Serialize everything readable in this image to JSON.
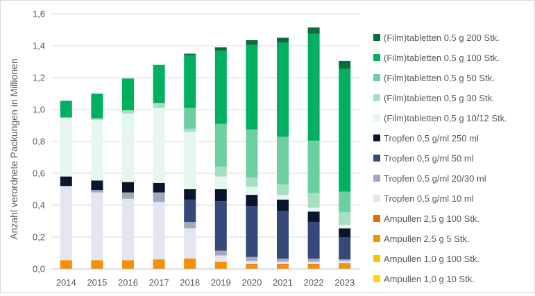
{
  "chart_data": {
    "type": "bar",
    "stacked": true,
    "ylabel": "Anzahl verordnete Packungen in Millionen",
    "xlabel": "",
    "ylim": [
      0,
      1.6
    ],
    "yticks": [
      "0,0",
      "0,2",
      "0,4",
      "0,6",
      "0,8",
      "1,0",
      "1,2",
      "1,4",
      "1,6"
    ],
    "grid": true,
    "legend_position": "right",
    "categories": [
      "2014",
      "2015",
      "2016",
      "2017",
      "2018",
      "2019",
      "2020",
      "2021",
      "2022",
      "2023"
    ],
    "series": [
      {
        "name": "Ampullen 1,0 g 10 Stk.",
        "color": "#ffd700",
        "values": [
          0,
          0,
          0,
          0,
          0,
          0,
          0,
          0,
          0,
          0
        ]
      },
      {
        "name": "Ampullen 1,0 g 100 Stk.",
        "color": "#f5c400",
        "values": [
          0,
          0,
          0,
          0,
          0,
          0,
          0,
          0,
          0,
          0
        ]
      },
      {
        "name": "Ampullen 2,5 g 5 Stk.",
        "color": "#f39200",
        "values": [
          0.055,
          0.055,
          0.055,
          0.06,
          0.065,
          0.045,
          0.025,
          0.025,
          0.025,
          0.03
        ]
      },
      {
        "name": "Ampullen 2,5 g 100 Stk.",
        "color": "#e56b00",
        "values": [
          0,
          0,
          0,
          0,
          0,
          0,
          0.005,
          0.005,
          0.005,
          0.005
        ]
      },
      {
        "name": "Tropfen 0,5 g/ml 10 ml",
        "color": "#e3e6ee",
        "values": [
          0.465,
          0.425,
          0.385,
          0.36,
          0.19,
          0.04,
          0.02,
          0.015,
          0.015,
          0.015
        ]
      },
      {
        "name": "Tropfen 0,5 g/ml 20/30 ml",
        "color": "#a2a9bf",
        "values": [
          0,
          0.015,
          0.04,
          0.06,
          0.04,
          0.03,
          0.025,
          0.02,
          0.02,
          0.01
        ]
      },
      {
        "name": "Tropfen 0,5 g/ml 50 ml",
        "color": "#34497a",
        "values": [
          0,
          0,
          0,
          0,
          0.14,
          0.31,
          0.32,
          0.3,
          0.23,
          0.14
        ]
      },
      {
        "name": "Tropfen 0,5 g/ml 250 ml",
        "color": "#0a1530",
        "values": [
          0.06,
          0.06,
          0.065,
          0.06,
          0.065,
          0.075,
          0.07,
          0.07,
          0.065,
          0.055
        ]
      },
      {
        "name": "(Film)tabletten 0,5 g 10/12 Stk.",
        "color": "#e5f6ee",
        "values": [
          0.37,
          0.38,
          0.43,
          0.47,
          0.36,
          0.08,
          0.05,
          0.03,
          0.025,
          0.02
        ]
      },
      {
        "name": "(Film)tabletten 0,5 g 30 Stk.",
        "color": "#a6dfc1",
        "values": [
          0,
          0.01,
          0.02,
          0.03,
          0.02,
          0.06,
          0.06,
          0.065,
          0.09,
          0.08
        ]
      },
      {
        "name": "(Film)tabletten 0,5 g 50 Stk.",
        "color": "#6ccf9f",
        "values": [
          0,
          0,
          0,
          0,
          0.13,
          0.27,
          0.3,
          0.3,
          0.33,
          0.13
        ]
      },
      {
        "name": "(Film)tabletten 0,5 g 100 Stk.",
        "color": "#00b060",
        "values": [
          0.105,
          0.155,
          0.2,
          0.24,
          0.33,
          0.46,
          0.53,
          0.59,
          0.67,
          0.77
        ]
      },
      {
        "name": "(Film)tabletten 0,5 g 200 Stk.",
        "color": "#0a6e3c",
        "values": [
          0,
          0,
          0,
          0,
          0.01,
          0.02,
          0.03,
          0.03,
          0.04,
          0.05
        ]
      }
    ]
  }
}
